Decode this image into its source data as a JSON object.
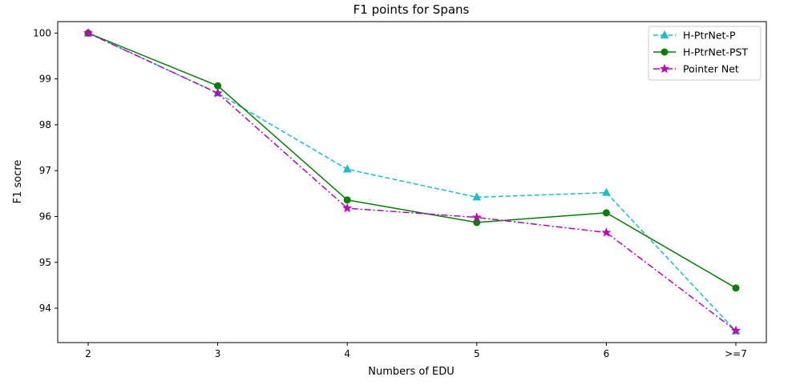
{
  "chart_data": {
    "type": "line",
    "title": "F1 points for Spans",
    "xlabel": "Numbers of EDU",
    "ylabel": "F1 socre",
    "categories": [
      "2",
      "3",
      "4",
      "5",
      "6",
      ">=7"
    ],
    "ylim": [
      93.25,
      100.25
    ],
    "yticks": [
      94,
      95,
      96,
      97,
      98,
      99,
      100
    ],
    "grid": false,
    "legend_position": "top-right",
    "series": [
      {
        "name": "H-PtrNet-P",
        "values": [
          100.0,
          98.69,
          97.03,
          96.42,
          96.52,
          93.5
        ],
        "color": "#17becf",
        "line_style": "dashed",
        "marker": "triangle"
      },
      {
        "name": "H-PtrNet-PST",
        "values": [
          100.0,
          98.85,
          96.36,
          95.87,
          96.08,
          94.44
        ],
        "color": "#008000",
        "line_style": "solid",
        "marker": "circle"
      },
      {
        "name": "Pointer Net",
        "values": [
          100.0,
          98.69,
          96.18,
          95.98,
          95.65,
          93.51
        ],
        "color": "#bf00bf",
        "line_style": "dashdot",
        "marker": "star"
      }
    ]
  }
}
